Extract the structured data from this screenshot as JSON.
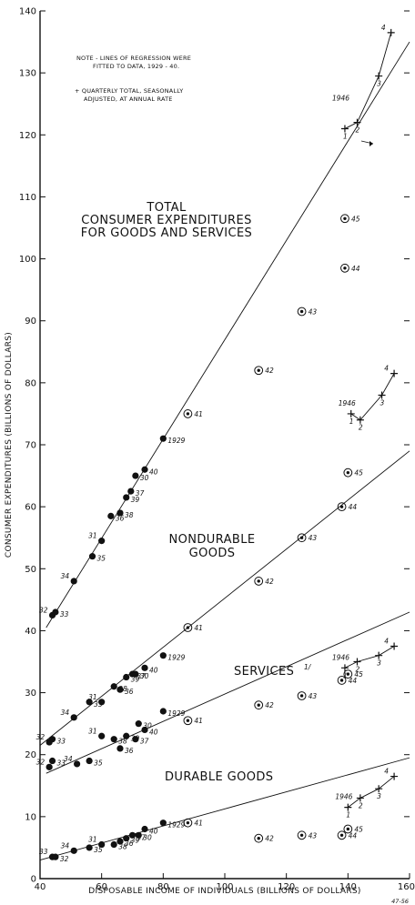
{
  "chart_data": {
    "type": "scatter",
    "xlabel": "DISPOSABLE INCOME OF INDIVIDUALS (BILLIONS OF DOLLARS)",
    "ylabel": "CONSUMER EXPENDITURES (BILLIONS OF DOLLARS)",
    "xlim": [
      40,
      160
    ],
    "ylim": [
      0,
      140
    ],
    "x_ticks": [
      "40",
      "60",
      "80",
      "100",
      "120",
      "140",
      "160"
    ],
    "y_ticks": [
      "0",
      "10",
      "20",
      "30",
      "40",
      "50",
      "60",
      "70",
      "80",
      "90",
      "100",
      "110",
      "120",
      "130",
      "140"
    ],
    "notes": [
      "NOTE - LINES OF REGRESSION WERE",
      "FITTED TO DATA, 1929 - 40.",
      "+ QUARTERLY TOTAL, SEASONALLY",
      "ADJUSTED, AT ANNUAL RATE"
    ],
    "ref_code": "47-56",
    "series": [
      {
        "name": "TOTAL CONSUMER EXPENDITURES FOR GOODS AND SERVICES",
        "title_lines": [
          "TOTAL",
          "CONSUMER EXPENDITURES",
          "FOR GOODS AND SERVICES"
        ],
        "regression": [
          [
            42,
            40.5
          ],
          [
            160,
            135
          ]
        ],
        "points": [
          {
            "label": "32",
            "x": 44,
            "y": 42.5
          },
          {
            "label": "33",
            "x": 45,
            "y": 43
          },
          {
            "label": "34",
            "x": 51,
            "y": 48
          },
          {
            "label": "35",
            "x": 57,
            "y": 52
          },
          {
            "label": "31",
            "x": 60,
            "y": 54.5
          },
          {
            "label": "36",
            "x": 63,
            "y": 58.5
          },
          {
            "label": "38",
            "x": 66,
            "y": 59
          },
          {
            "label": "39",
            "x": 68,
            "y": 61.5
          },
          {
            "label": "37",
            "x": 69.5,
            "y": 62.5
          },
          {
            "label": "30",
            "x": 71,
            "y": 65
          },
          {
            "label": "40",
            "x": 74,
            "y": 66
          },
          {
            "label": "1929",
            "x": 80,
            "y": 71
          }
        ],
        "war_years": [
          {
            "label": "41",
            "x": 88,
            "y": 75
          },
          {
            "label": "42",
            "x": 111,
            "y": 82
          },
          {
            "label": "43",
            "x": 125,
            "y": 91.5
          },
          {
            "label": "44",
            "x": 139,
            "y": 98.5
          },
          {
            "label": "45",
            "x": 139,
            "y": 106.5
          }
        ],
        "quarterly_1946": [
          {
            "label": "1",
            "x": 139,
            "y": 121
          },
          {
            "label": "2",
            "x": 143,
            "y": 122
          },
          {
            "label": "3",
            "x": 150,
            "y": 129.5
          },
          {
            "label": "4",
            "x": 154,
            "y": 136.5
          }
        ]
      },
      {
        "name": "NONDURABLE GOODS",
        "title_lines": [
          "NONDURABLE",
          "GOODS"
        ],
        "regression": [
          [
            40,
            21.5
          ],
          [
            160,
            69
          ]
        ],
        "points": [
          {
            "label": "32",
            "x": 43,
            "y": 22
          },
          {
            "label": "33",
            "x": 44,
            "y": 22.5
          },
          {
            "label": "34",
            "x": 51,
            "y": 26
          },
          {
            "label": "35",
            "x": 56,
            "y": 28.5
          },
          {
            "label": "31",
            "x": 60,
            "y": 28.5
          },
          {
            "label": "38",
            "x": 64,
            "y": 31
          },
          {
            "label": "36",
            "x": 66,
            "y": 30.5
          },
          {
            "label": "39",
            "x": 68,
            "y": 32.5
          },
          {
            "label": "37",
            "x": 70,
            "y": 33
          },
          {
            "label": "30",
            "x": 71,
            "y": 33
          },
          {
            "label": "40",
            "x": 74,
            "y": 34
          },
          {
            "label": "1929",
            "x": 80,
            "y": 36
          }
        ],
        "war_years": [
          {
            "label": "41",
            "x": 88,
            "y": 40.5
          },
          {
            "label": "42",
            "x": 111,
            "y": 48
          },
          {
            "label": "43",
            "x": 125,
            "y": 55
          },
          {
            "label": "44",
            "x": 138,
            "y": 60
          },
          {
            "label": "45",
            "x": 140,
            "y": 65.5
          }
        ],
        "quarterly_1946": [
          {
            "label": "1",
            "x": 141,
            "y": 75
          },
          {
            "label": "2",
            "x": 144,
            "y": 74
          },
          {
            "label": "3",
            "x": 151,
            "y": 78
          },
          {
            "label": "4",
            "x": 155,
            "y": 81.5
          }
        ]
      },
      {
        "name": "SERVICES 1/",
        "title_lines": [
          "SERVICES"
        ],
        "footnote": "1/",
        "regression": [
          [
            42,
            17
          ],
          [
            160,
            43
          ]
        ],
        "points": [
          {
            "label": "32",
            "x": 43,
            "y": 18
          },
          {
            "label": "33",
            "x": 44,
            "y": 19
          },
          {
            "label": "34",
            "x": 52,
            "y": 18.5
          },
          {
            "label": "35",
            "x": 56,
            "y": 19
          },
          {
            "label": "31",
            "x": 60,
            "y": 23
          },
          {
            "label": "38",
            "x": 64,
            "y": 22.5
          },
          {
            "label": "36",
            "x": 66,
            "y": 21
          },
          {
            "label": "39",
            "x": 68,
            "y": 23
          },
          {
            "label": "37",
            "x": 71,
            "y": 22.5
          },
          {
            "label": "30",
            "x": 72,
            "y": 25
          },
          {
            "label": "40",
            "x": 74,
            "y": 24
          },
          {
            "label": "1929",
            "x": 80,
            "y": 27
          }
        ],
        "war_years": [
          {
            "label": "41",
            "x": 88,
            "y": 25.5
          },
          {
            "label": "42",
            "x": 111,
            "y": 28
          },
          {
            "label": "43",
            "x": 125,
            "y": 29.5
          },
          {
            "label": "44",
            "x": 138,
            "y": 32
          },
          {
            "label": "45",
            "x": 140,
            "y": 33
          }
        ],
        "quarterly_1946": [
          {
            "label": "1",
            "x": 139,
            "y": 34
          },
          {
            "label": "2",
            "x": 143,
            "y": 35
          },
          {
            "label": "3",
            "x": 150,
            "y": 36
          },
          {
            "label": "4",
            "x": 155,
            "y": 37.5
          }
        ]
      },
      {
        "name": "DURABLE GOODS",
        "title_lines": [
          "DURABLE GOODS"
        ],
        "regression": [
          [
            40,
            3
          ],
          [
            160,
            19.5
          ]
        ],
        "points": [
          {
            "label": "33",
            "x": 44,
            "y": 3.5
          },
          {
            "label": "32",
            "x": 45,
            "y": 3.5
          },
          {
            "label": "34",
            "x": 51,
            "y": 4.5
          },
          {
            "label": "35",
            "x": 56,
            "y": 5
          },
          {
            "label": "31",
            "x": 60,
            "y": 5.5
          },
          {
            "label": "38",
            "x": 64,
            "y": 5.5
          },
          {
            "label": "36",
            "x": 66,
            "y": 6
          },
          {
            "label": "39",
            "x": 68,
            "y": 6.5
          },
          {
            "label": "37",
            "x": 70,
            "y": 7
          },
          {
            "label": "30",
            "x": 72,
            "y": 7
          },
          {
            "label": "40",
            "x": 74,
            "y": 8
          },
          {
            "label": "1929",
            "x": 80,
            "y": 9
          }
        ],
        "war_years": [
          {
            "label": "41",
            "x": 88,
            "y": 9
          },
          {
            "label": "42",
            "x": 111,
            "y": 6.5
          },
          {
            "label": "43",
            "x": 125,
            "y": 7
          },
          {
            "label": "44",
            "x": 138,
            "y": 7
          },
          {
            "label": "45",
            "x": 140,
            "y": 8
          }
        ],
        "quarterly_1946": [
          {
            "label": "1",
            "x": 140,
            "y": 11.5
          },
          {
            "label": "2",
            "x": 144,
            "y": 13
          },
          {
            "label": "3",
            "x": 150,
            "y": 14.5
          },
          {
            "label": "4",
            "x": 155,
            "y": 16.5
          }
        ]
      }
    ],
    "year_1946_label": "1946",
    "style": {
      "ink": "#111111",
      "background": "#ffffff"
    }
  }
}
